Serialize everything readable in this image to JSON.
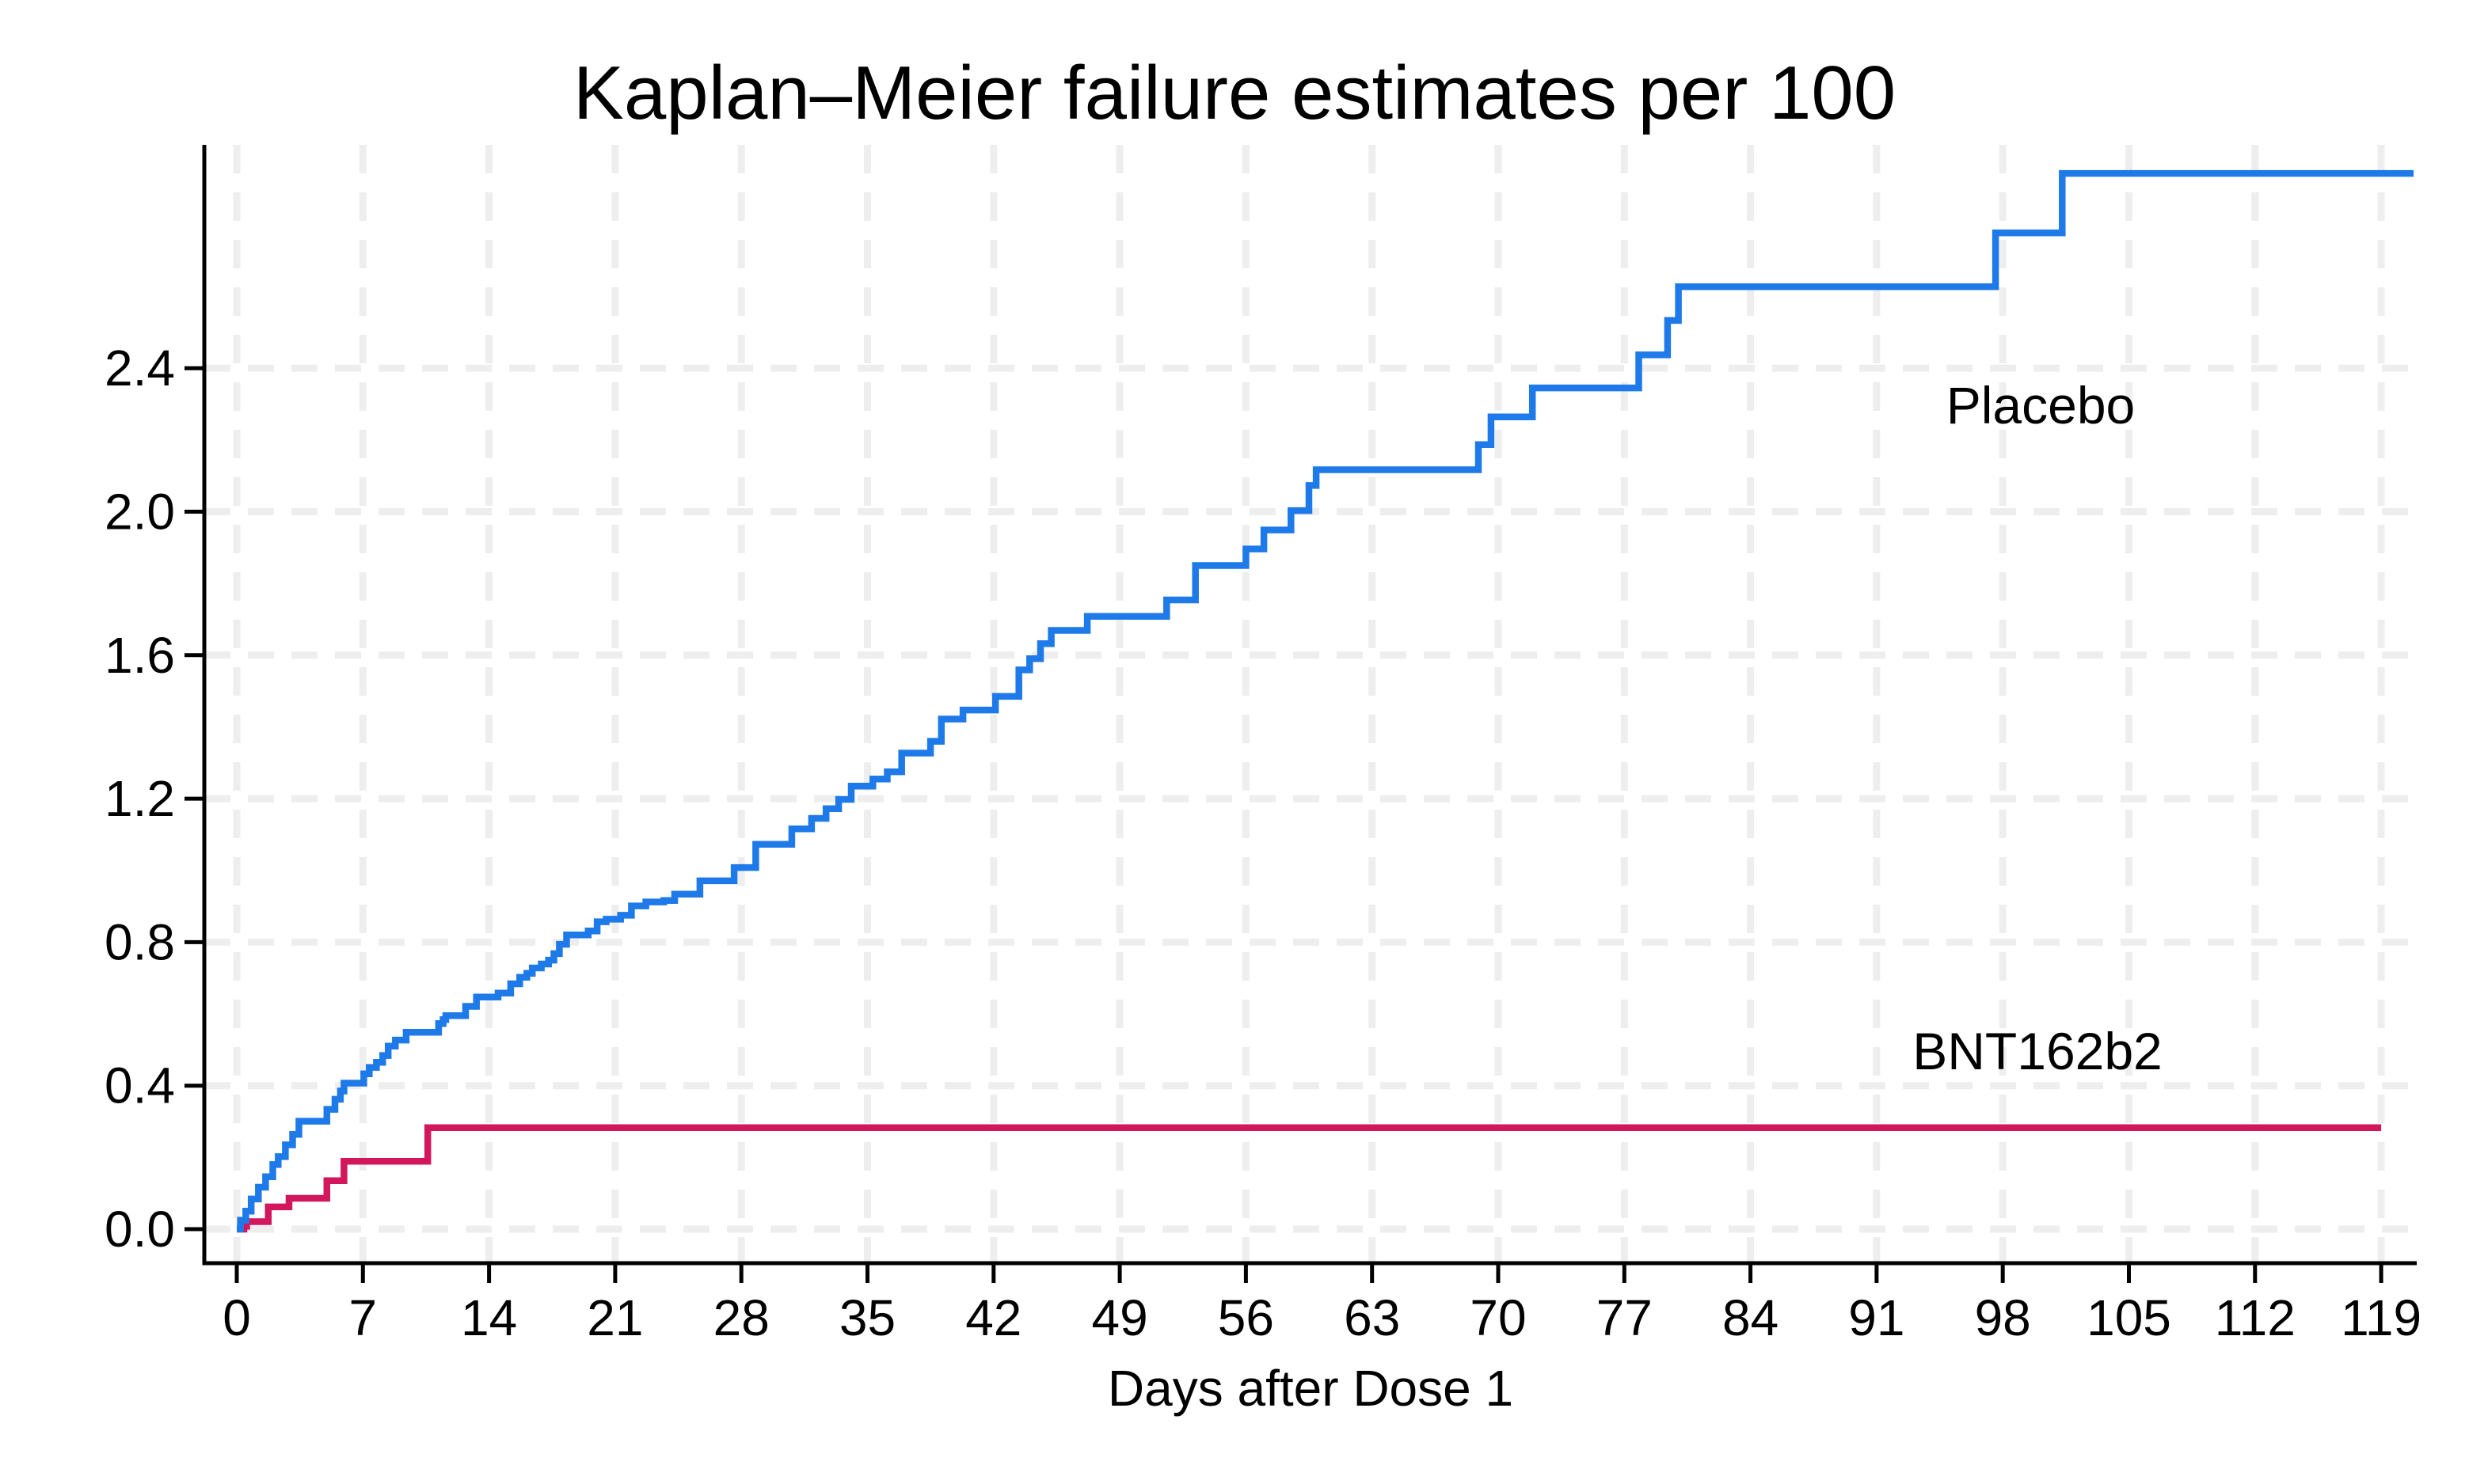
{
  "title": "Kaplan–Meier failure estimates per 100",
  "x_axis": {
    "label": "Days after Dose 1"
  },
  "chart_data": {
    "type": "line",
    "subtype": "kaplan-meier-step-after",
    "title": "Kaplan–Meier failure estimates per 100",
    "xlabel": "Days after Dose 1",
    "ylabel": "",
    "x_ticks": [
      0,
      7,
      14,
      21,
      28,
      35,
      42,
      49,
      56,
      63,
      70,
      77,
      84,
      91,
      98,
      105,
      112,
      119
    ],
    "y_ticks": [
      0.0,
      0.4,
      0.8,
      1.2,
      1.6,
      2.0,
      2.4
    ],
    "y_tick_format": "one-decimal",
    "xlim": [
      -1.8,
      121.5
    ],
    "ylim": [
      -0.095,
      3.02
    ],
    "grid": {
      "show": true,
      "style": "dashed",
      "color": "#EEEEEE"
    },
    "axis_color": "#000000",
    "legend_position": "labels-inside-plot",
    "series": [
      {
        "name": "Placebo",
        "color": "#1E7AE9",
        "label_color": "#1F4E79",
        "end_day": 120.8,
        "points": [
          [
            0,
            0
          ],
          [
            0.2,
            0.025
          ],
          [
            0.5,
            0.05
          ],
          [
            0.8,
            0.084
          ],
          [
            1.2,
            0.117
          ],
          [
            1.6,
            0.146
          ],
          [
            2.0,
            0.18
          ],
          [
            2.3,
            0.202
          ],
          [
            2.7,
            0.235
          ],
          [
            3.1,
            0.264
          ],
          [
            3.45,
            0.301
          ],
          [
            5.0,
            0.334
          ],
          [
            5.45,
            0.362
          ],
          [
            5.75,
            0.385
          ],
          [
            5.95,
            0.407
          ],
          [
            7.05,
            0.433
          ],
          [
            7.35,
            0.451
          ],
          [
            7.75,
            0.465
          ],
          [
            8.1,
            0.484
          ],
          [
            8.4,
            0.51
          ],
          [
            8.8,
            0.527
          ],
          [
            9.4,
            0.549
          ],
          [
            11.2,
            0.573
          ],
          [
            11.45,
            0.584
          ],
          [
            11.6,
            0.595
          ],
          [
            12.7,
            0.621
          ],
          [
            13.3,
            0.647
          ],
          [
            14.5,
            0.658
          ],
          [
            15.2,
            0.684
          ],
          [
            15.7,
            0.702
          ],
          [
            16.1,
            0.713
          ],
          [
            16.4,
            0.728
          ],
          [
            16.9,
            0.739
          ],
          [
            17.3,
            0.75
          ],
          [
            17.6,
            0.768
          ],
          [
            17.9,
            0.794
          ],
          [
            18.3,
            0.82
          ],
          [
            19.5,
            0.831
          ],
          [
            20.0,
            0.857
          ],
          [
            20.5,
            0.864
          ],
          [
            21.3,
            0.875
          ],
          [
            21.9,
            0.901
          ],
          [
            22.7,
            0.912
          ],
          [
            23.7,
            0.916
          ],
          [
            24.3,
            0.934
          ],
          [
            25.7,
            0.971
          ],
          [
            27.6,
            1.008
          ],
          [
            28.8,
            1.073
          ],
          [
            30.8,
            1.116
          ],
          [
            31.9,
            1.145
          ],
          [
            32.7,
            1.172
          ],
          [
            33.4,
            1.198
          ],
          [
            34.1,
            1.235
          ],
          [
            35.3,
            1.255
          ],
          [
            36.1,
            1.275
          ],
          [
            36.9,
            1.327
          ],
          [
            38.5,
            1.36
          ],
          [
            39.1,
            1.422
          ],
          [
            40.3,
            1.447
          ],
          [
            42.1,
            1.485
          ],
          [
            43.4,
            1.559
          ],
          [
            44.0,
            1.59
          ],
          [
            44.6,
            1.632
          ],
          [
            45.2,
            1.669
          ],
          [
            47.2,
            1.708
          ],
          [
            51.6,
            1.754
          ],
          [
            53.2,
            1.85
          ],
          [
            56.0,
            1.896
          ],
          [
            57.0,
            1.949
          ],
          [
            58.5,
            2.003
          ],
          [
            59.5,
            2.073
          ],
          [
            59.9,
            2.117
          ],
          [
            68.9,
            2.187
          ],
          [
            69.6,
            2.264
          ],
          [
            71.9,
            2.345
          ],
          [
            77.8,
            2.437
          ],
          [
            79.4,
            2.533
          ],
          [
            80.0,
            2.627
          ],
          [
            97.6,
            2.777
          ],
          [
            101.3,
            2.943
          ]
        ]
      },
      {
        "name": "BNT162b2",
        "color": "#D2175D",
        "label_color": "#8C3A43",
        "end_day": 119.0,
        "points": [
          [
            0,
            0
          ],
          [
            0.4,
            0.008
          ],
          [
            0.55,
            0.021
          ],
          [
            1.75,
            0.062
          ],
          [
            2.9,
            0.086
          ],
          [
            5.0,
            0.135
          ],
          [
            5.95,
            0.189
          ],
          [
            10.6,
            0.283
          ]
        ]
      }
    ]
  }
}
